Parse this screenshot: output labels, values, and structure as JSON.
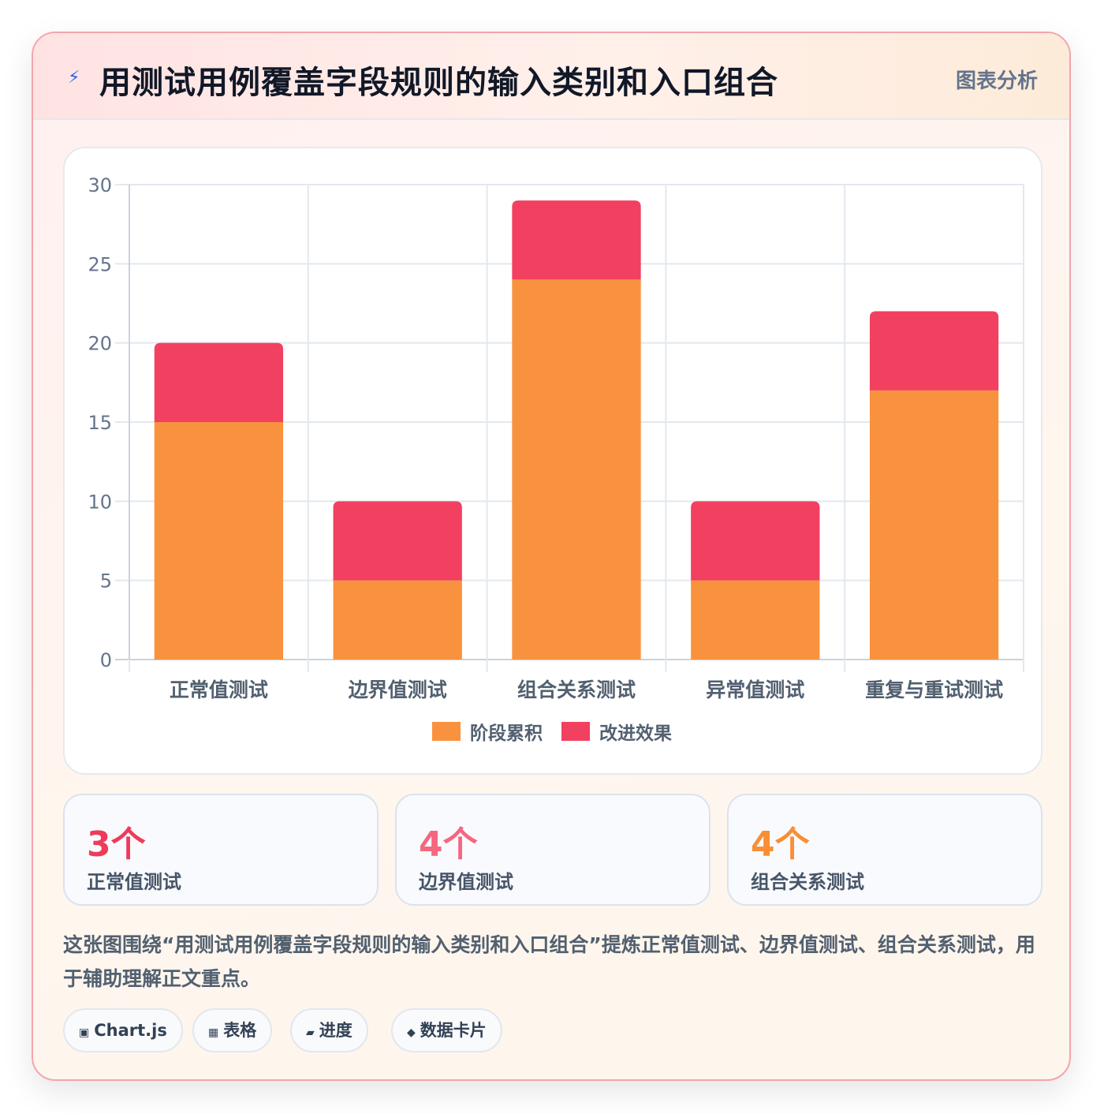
{
  "header": {
    "icon": "lightning-icon",
    "title": "用测试用例覆盖字段规则的输入类别和入口组合",
    "tag": "图表分析"
  },
  "chart_data": {
    "type": "bar",
    "stacked": true,
    "categories": [
      "正常值测试",
      "边界值测试",
      "组合关系测试",
      "异常值测试",
      "重复与重试测试"
    ],
    "series": [
      {
        "name": "阶段累积",
        "values": [
          15,
          5,
          24,
          5,
          17
        ],
        "color": "#f9923e"
      },
      {
        "name": "改进效果",
        "values": [
          5,
          5,
          5,
          5,
          5
        ],
        "color": "#f24060"
      }
    ],
    "ylim": [
      0,
      30
    ],
    "yticks": [
      0,
      5,
      10,
      15,
      20,
      25,
      30
    ],
    "grid": true,
    "legend": "bottom"
  },
  "stats": [
    {
      "value": "3个",
      "label": "正常值测试",
      "color": "#ef3b5a"
    },
    {
      "value": "4个",
      "label": "边界值测试",
      "color": "#f4677f"
    },
    {
      "value": "4个",
      "label": "组合关系测试",
      "color": "#f98e34"
    }
  ],
  "description": "这张图围绕“用测试用例覆盖字段规则的输入类别和入口组合”提炼正常值测试、边界值测试、组合关系测试，用于辅助理解正文重点。",
  "pills": [
    {
      "icon": "▣",
      "icon_name": "chart-icon",
      "label": "Chart.js"
    },
    {
      "icon": "▦",
      "icon_name": "table-icon",
      "label": "表格"
    },
    {
      "icon": "▰",
      "icon_name": "progress-icon",
      "label": "进度"
    },
    {
      "icon": "◆",
      "icon_name": "card-icon",
      "label": "数据卡片"
    }
  ]
}
